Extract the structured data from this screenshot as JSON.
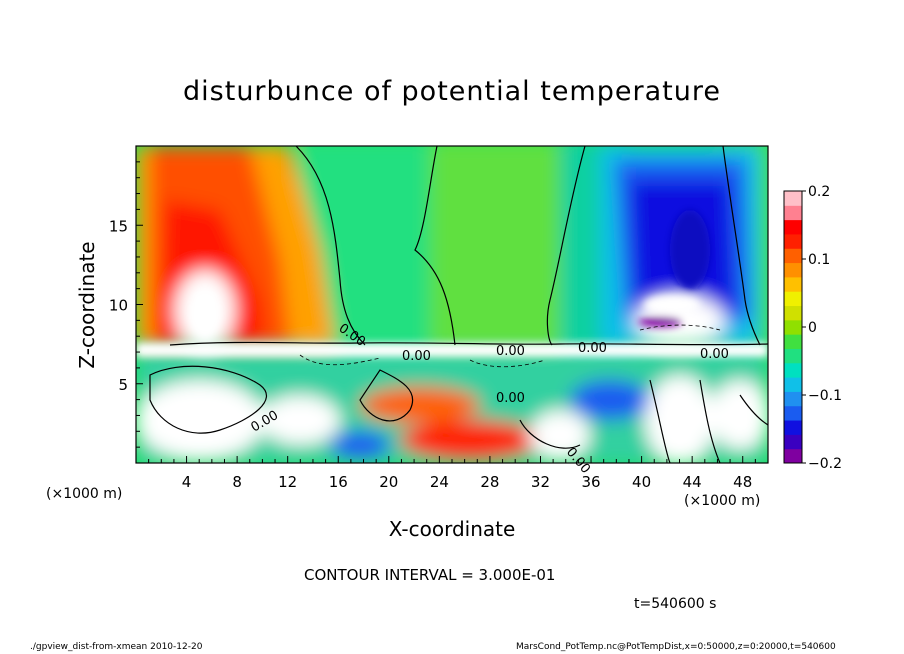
{
  "chart_data": {
    "type": "heatmap",
    "title": "disturbunce of potential temperature",
    "xlabel": "X-coordinate",
    "ylabel": "Z-coordinate",
    "x_unit": "(×1000 m)",
    "y_unit": "(×1000 m)",
    "xlim": [
      0,
      50
    ],
    "ylim": [
      0,
      20
    ],
    "x_ticks": [
      4,
      8,
      12,
      16,
      20,
      24,
      28,
      32,
      36,
      40,
      44,
      48
    ],
    "y_ticks": [
      5,
      10,
      15
    ],
    "colorbar": {
      "range": [
        -0.2,
        0.2
      ],
      "ticks": [
        0.2,
        0.1,
        0,
        -0.1,
        -0.2
      ],
      "tick_labels": [
        "0.2",
        "0.1",
        "0",
        "−0.1",
        "−0.2"
      ],
      "colors": [
        "#7f00a0",
        "#3a00c0",
        "#1010e0",
        "#1a5cf0",
        "#2090f0",
        "#10c0e8",
        "#00e0c0",
        "#20e080",
        "#40e040",
        "#90e000",
        "#d0e000",
        "#f0f000",
        "#ffc000",
        "#ff9000",
        "#ff6000",
        "#ff2000",
        "#ff0000",
        "#ff8090",
        "#ffc0c8"
      ]
    },
    "contour_labels": [
      "0.00",
      "0.00",
      "0.00",
      "0.00",
      "0.00",
      "0.00",
      "0.00",
      "0.00"
    ],
    "features": [
      {
        "kind": "warm_max",
        "x": 6.0,
        "z": 10.5,
        "value": 0.2
      },
      {
        "kind": "cold_min",
        "x": 43.5,
        "z": 14.0,
        "value": -0.2
      }
    ],
    "grid": false
  },
  "annotations": {
    "contour_interval": "CONTOUR INTERVAL = 3.000E-01",
    "time": "t=540600 s",
    "footer_left": "./gpview_dist-from-xmean  2010-12-20",
    "footer_right": "MarsCond_PotTemp.nc@PotTempDist,x=0:50000,z=0:20000,t=540600"
  }
}
